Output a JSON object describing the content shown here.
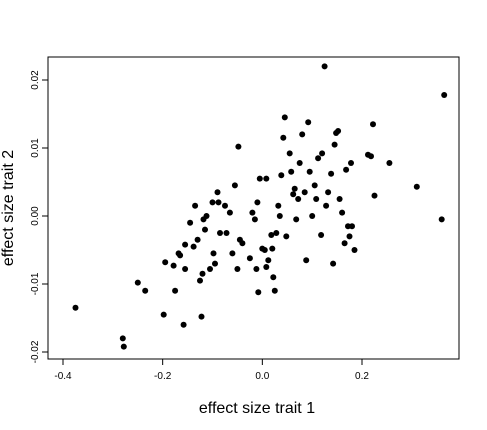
{
  "chart_data": {
    "type": "scatter",
    "title": "",
    "xlabel": "effect size trait 1",
    "ylabel": "effect size trait 2",
    "xlim": [
      -0.4,
      0.4
    ],
    "ylim": [
      -0.022,
      0.024
    ],
    "x_ticks": [
      -0.4,
      -0.2,
      0.0,
      0.2
    ],
    "x_tick_labels": [
      "-0.4",
      "-0.2",
      "0.0",
      "0.2"
    ],
    "y_ticks": [
      -0.02,
      -0.01,
      0.0,
      0.01,
      0.02
    ],
    "y_tick_labels": [
      "-0.02",
      "-0.01",
      "0.00",
      "0.01",
      "0.02"
    ],
    "grid": false,
    "legend": "none",
    "colors": {
      "points": "#000000",
      "axes": "#000000",
      "background": "#ffffff"
    },
    "series": [
      {
        "points": [
          [
            -0.375,
            -0.0135
          ],
          [
            -0.28,
            -0.018
          ],
          [
            -0.278,
            -0.0192
          ],
          [
            -0.25,
            -0.0098
          ],
          [
            -0.235,
            -0.011
          ],
          [
            -0.198,
            -0.0145
          ],
          [
            -0.195,
            -0.0068
          ],
          [
            -0.178,
            -0.0073
          ],
          [
            -0.175,
            -0.011
          ],
          [
            -0.168,
            -0.0055
          ],
          [
            -0.165,
            -0.0058
          ],
          [
            -0.158,
            -0.016
          ],
          [
            -0.155,
            -0.0078
          ],
          [
            -0.155,
            -0.0042
          ],
          [
            -0.145,
            -0.001
          ],
          [
            -0.138,
            -0.0045
          ],
          [
            -0.135,
            0.0015
          ],
          [
            -0.13,
            -0.0035
          ],
          [
            -0.125,
            -0.0095
          ],
          [
            -0.122,
            -0.0148
          ],
          [
            -0.12,
            -0.0085
          ],
          [
            -0.118,
            -0.0005
          ],
          [
            -0.115,
            -0.002
          ],
          [
            -0.112,
            0.0
          ],
          [
            -0.105,
            -0.0078
          ],
          [
            -0.1,
            0.002
          ],
          [
            -0.098,
            -0.0055
          ],
          [
            -0.095,
            -0.007
          ],
          [
            -0.09,
            0.0035
          ],
          [
            -0.088,
            0.002
          ],
          [
            -0.085,
            -0.0025
          ],
          [
            -0.075,
            0.0015
          ],
          [
            -0.072,
            -0.0025
          ],
          [
            -0.065,
            0.0005
          ],
          [
            -0.06,
            -0.0055
          ],
          [
            -0.055,
            0.0045
          ],
          [
            -0.05,
            -0.0078
          ],
          [
            -0.048,
            0.0102
          ],
          [
            -0.045,
            -0.0035
          ],
          [
            -0.04,
            -0.004
          ],
          [
            -0.025,
            -0.0062
          ],
          [
            -0.02,
            0.0005
          ],
          [
            -0.015,
            -0.0005
          ],
          [
            -0.012,
            -0.0078
          ],
          [
            -0.01,
            0.002
          ],
          [
            -0.008,
            -0.0112
          ],
          [
            -0.005,
            0.0055
          ],
          [
            0.0,
            -0.0048
          ],
          [
            0.005,
            -0.005
          ],
          [
            0.008,
            -0.0075
          ],
          [
            0.008,
            0.0055
          ],
          [
            0.012,
            -0.0065
          ],
          [
            0.018,
            -0.0028
          ],
          [
            0.02,
            -0.0048
          ],
          [
            0.022,
            -0.009
          ],
          [
            0.025,
            -0.011
          ],
          [
            0.028,
            -0.0025
          ],
          [
            0.032,
            0.0015
          ],
          [
            0.035,
            0.0
          ],
          [
            0.038,
            0.006
          ],
          [
            0.042,
            0.0115
          ],
          [
            0.045,
            0.0145
          ],
          [
            0.048,
            -0.003
          ],
          [
            0.055,
            0.0092
          ],
          [
            0.058,
            0.0065
          ],
          [
            0.062,
            0.0032
          ],
          [
            0.065,
            0.004
          ],
          [
            0.068,
            -0.0005
          ],
          [
            0.072,
            0.0025
          ],
          [
            0.075,
            0.0078
          ],
          [
            0.08,
            0.012
          ],
          [
            0.085,
            0.0035
          ],
          [
            0.088,
            -0.0065
          ],
          [
            0.092,
            0.0138
          ],
          [
            0.095,
            0.0065
          ],
          [
            0.1,
            0.0
          ],
          [
            0.105,
            0.0045
          ],
          [
            0.108,
            0.0025
          ],
          [
            0.112,
            0.0085
          ],
          [
            0.118,
            -0.0028
          ],
          [
            0.12,
            0.0092
          ],
          [
            0.125,
            0.022
          ],
          [
            0.128,
            0.0015
          ],
          [
            0.132,
            0.0035
          ],
          [
            0.138,
            0.0062
          ],
          [
            0.142,
            -0.007
          ],
          [
            0.145,
            0.0105
          ],
          [
            0.148,
            0.0122
          ],
          [
            0.152,
            0.0125
          ],
          [
            0.155,
            0.0025
          ],
          [
            0.16,
            0.0005
          ],
          [
            0.165,
            -0.004
          ],
          [
            0.168,
            0.0068
          ],
          [
            0.172,
            -0.0015
          ],
          [
            0.175,
            -0.003
          ],
          [
            0.178,
            0.0078
          ],
          [
            0.18,
            -0.0015
          ],
          [
            0.185,
            -0.005
          ],
          [
            0.212,
            0.009
          ],
          [
            0.218,
            0.0088
          ],
          [
            0.222,
            0.0135
          ],
          [
            0.225,
            0.003
          ],
          [
            0.255,
            0.0078
          ],
          [
            0.31,
            0.0043
          ],
          [
            0.36,
            -0.0005
          ],
          [
            0.365,
            0.0178
          ]
        ]
      }
    ]
  }
}
